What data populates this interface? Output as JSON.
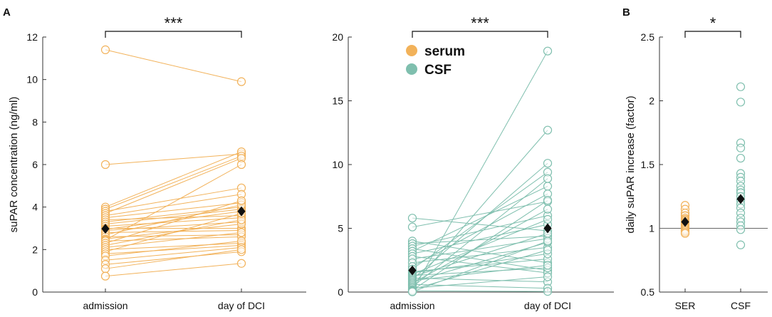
{
  "panel_labels": [
    "A",
    "B"
  ],
  "colors": {
    "serum": "#f2b25a",
    "csf": "#7fbfae",
    "mean": "#111111",
    "axis": "#333333"
  },
  "legend": {
    "serum": "serum",
    "csf": "CSF"
  },
  "chart_data": [
    {
      "id": "serum",
      "type": "paired-scatter",
      "ylabel": "suPAR concentration (ng/ml)",
      "categories": [
        "admission",
        "day of DCI"
      ],
      "ylim": [
        0,
        12
      ],
      "yticks": [
        0,
        2,
        4,
        6,
        8,
        10,
        12
      ],
      "significance": "***",
      "mean": [
        2.98,
        3.8
      ],
      "pairs": [
        [
          11.4,
          9.9
        ],
        [
          6.0,
          6.5
        ],
        [
          4.0,
          6.6
        ],
        [
          3.9,
          6.4
        ],
        [
          3.8,
          4.9
        ],
        [
          3.7,
          6.3
        ],
        [
          3.6,
          4.6
        ],
        [
          3.5,
          4.2
        ],
        [
          3.4,
          3.6
        ],
        [
          3.3,
          4.0
        ],
        [
          3.2,
          3.9
        ],
        [
          3.1,
          3.5
        ],
        [
          3.0,
          3.0
        ],
        [
          2.95,
          3.8
        ],
        [
          2.9,
          3.3
        ],
        [
          2.8,
          2.9
        ],
        [
          2.7,
          4.1
        ],
        [
          2.6,
          2.7
        ],
        [
          2.5,
          3.2
        ],
        [
          2.45,
          6.0
        ],
        [
          2.4,
          2.6
        ],
        [
          2.3,
          4.3
        ],
        [
          2.2,
          3.4
        ],
        [
          2.1,
          2.8
        ],
        [
          2.0,
          2.3
        ],
        [
          1.9,
          3.7
        ],
        [
          1.8,
          2.2
        ],
        [
          1.7,
          2.4
        ],
        [
          1.5,
          2.1
        ],
        [
          1.3,
          1.9
        ],
        [
          1.1,
          2.0
        ],
        [
          0.75,
          1.35
        ]
      ]
    },
    {
      "id": "csf",
      "type": "paired-scatter",
      "ylabel": "",
      "categories": [
        "admission",
        "day of DCI"
      ],
      "ylim": [
        0,
        20
      ],
      "yticks": [
        0,
        5,
        10,
        15,
        20
      ],
      "significance": "***",
      "mean": [
        1.7,
        5.0
      ],
      "pairs": [
        [
          5.8,
          4.8
        ],
        [
          5.1,
          7.1
        ],
        [
          4.0,
          2.3
        ],
        [
          3.8,
          4.4
        ],
        [
          3.6,
          6.0
        ],
        [
          3.4,
          1.7
        ],
        [
          3.2,
          8.3
        ],
        [
          3.0,
          5.3
        ],
        [
          2.8,
          1.5
        ],
        [
          2.6,
          4.2
        ],
        [
          2.3,
          3.5
        ],
        [
          2.0,
          7.7
        ],
        [
          1.8,
          9.4
        ],
        [
          1.6,
          2.6
        ],
        [
          1.5,
          3.0
        ],
        [
          1.4,
          5.7
        ],
        [
          1.3,
          1.9
        ],
        [
          1.2,
          4.6
        ],
        [
          1.1,
          0.8
        ],
        [
          1.0,
          10.1
        ],
        [
          0.9,
          2.1
        ],
        [
          0.8,
          3.9
        ],
        [
          0.7,
          6.5
        ],
        [
          0.6,
          0.3
        ],
        [
          0.5,
          12.7
        ],
        [
          0.4,
          8.9
        ],
        [
          0.3,
          1.2
        ],
        [
          0.2,
          3.3
        ],
        [
          0.15,
          7.2
        ],
        [
          0.1,
          0.05
        ],
        [
          0.05,
          18.9
        ],
        [
          0.02,
          4.0
        ]
      ]
    },
    {
      "id": "factor",
      "type": "strip",
      "ylabel": "daily suPAR increase (factor)",
      "categories": [
        "SER",
        "CSF"
      ],
      "ylim": [
        0.5,
        2.5
      ],
      "yticks": [
        0.5,
        1,
        1.5,
        2,
        2.5
      ],
      "significance": "*",
      "reference_line": 1,
      "mean": [
        1.05,
        1.23
      ],
      "points": [
        [
          1.18,
          1.15,
          1.12,
          1.1,
          1.08,
          1.07,
          1.06,
          1.05,
          1.04,
          1.03,
          1.02,
          1.01,
          1.0,
          0.99,
          0.98,
          0.97,
          0.96
        ],
        [
          2.11,
          1.99,
          1.67,
          1.63,
          1.55,
          1.43,
          1.4,
          1.37,
          1.33,
          1.3,
          1.28,
          1.25,
          1.22,
          1.19,
          1.16,
          1.12,
          1.08,
          1.05,
          1.02,
          0.99,
          0.87
        ]
      ]
    }
  ]
}
